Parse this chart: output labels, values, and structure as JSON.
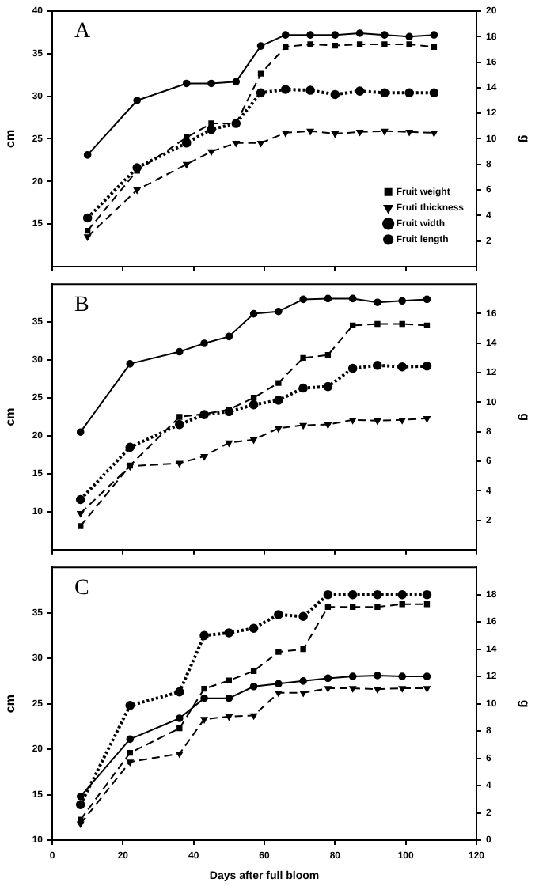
{
  "chart_data": [
    {
      "type": "line",
      "title": "A",
      "ylabel": "cm",
      "y2label": "g",
      "x": [
        10,
        24,
        38,
        45,
        52,
        59,
        66,
        73,
        80,
        87,
        94,
        101,
        108
      ],
      "xlim": [
        0,
        120
      ],
      "xticks": [
        0,
        20,
        40,
        60,
        80,
        100,
        120
      ],
      "ylim": [
        10,
        40
      ],
      "yticks": [
        15,
        20,
        25,
        30,
        35,
        40
      ],
      "y2lim": [
        0,
        20
      ],
      "y2ticks": [
        2,
        4,
        6,
        8,
        10,
        12,
        14,
        16,
        18,
        20
      ],
      "tick_labels": "y",
      "grid": false,
      "legend": "bottom right",
      "series": [
        {
          "name": "Fruit length",
          "color": "#000000",
          "marker": "circle",
          "line_style": "solid",
          "values": [
            23.1,
            29.5,
            31.5,
            31.5,
            31.7,
            35.9,
            37.2,
            37.2,
            37.2,
            37.4,
            37.2,
            37.0,
            37.2
          ]
        },
        {
          "name": "Fruit width",
          "color": "#000000",
          "marker": "circle",
          "line_style": "dotted",
          "values": [
            15.7,
            21.6,
            24.5,
            26.1,
            26.8,
            30.4,
            30.8,
            30.7,
            30.2,
            30.6,
            30.4,
            30.4,
            30.4
          ]
        },
        {
          "name": "Fruti thickness",
          "color": "#000000",
          "marker": "triangle",
          "line_style": "dashed",
          "values": [
            13.5,
            19.0,
            22.0,
            23.5,
            24.5,
            24.5,
            25.7,
            25.9,
            25.6,
            25.8,
            25.9,
            25.8,
            25.7
          ]
        },
        {
          "name": "Fruit weight",
          "color": "#000000",
          "marker": "square",
          "line_style": "dashed",
          "axis": "y2",
          "values": [
            2.8,
            7.5,
            10.1,
            11.2,
            11.2,
            15.1,
            17.2,
            17.4,
            17.3,
            17.4,
            17.4,
            17.4,
            17.2
          ]
        }
      ]
    },
    {
      "type": "line",
      "title": "B",
      "ylabel": "cm",
      "y2label": "g",
      "x": [
        8,
        22,
        36,
        43,
        50,
        57,
        64,
        71,
        78,
        85,
        92,
        99,
        106
      ],
      "xlim": [
        0,
        120
      ],
      "xticks": [
        0,
        20,
        40,
        60,
        80,
        100,
        120
      ],
      "ylim": [
        5,
        40
      ],
      "yticks": [
        10,
        15,
        20,
        25,
        30,
        35
      ],
      "y2lim": [
        0,
        18
      ],
      "y2ticks": [
        2,
        4,
        6,
        8,
        10,
        12,
        14,
        16
      ],
      "tick_labels": "y",
      "grid": false,
      "series": [
        {
          "color": "#000000",
          "marker": "circle",
          "line_style": "solid",
          "values": [
            20.5,
            29.5,
            31.1,
            32.2,
            33.1,
            36.1,
            36.4,
            38.0,
            38.1,
            38.1,
            37.6,
            37.8,
            38.0
          ]
        },
        {
          "color": "#000000",
          "marker": "circle",
          "line_style": "dotted",
          "values": [
            11.6,
            18.5,
            21.5,
            22.8,
            23.2,
            24.1,
            24.7,
            26.3,
            26.5,
            28.9,
            29.3,
            29.1,
            29.2
          ]
        },
        {
          "color": "#000000",
          "marker": "triangle",
          "line_style": "dashed",
          "values": [
            9.8,
            16.0,
            16.4,
            17.3,
            19.1,
            19.5,
            21.0,
            21.4,
            21.5,
            22.1,
            22.0,
            22.1,
            22.3
          ]
        },
        {
          "color": "#000000",
          "marker": "square",
          "line_style": "dashed",
          "axis": "y2",
          "values": [
            1.6,
            5.7,
            9.0,
            9.2,
            9.5,
            10.3,
            11.3,
            13.0,
            13.2,
            15.2,
            15.3,
            15.3,
            15.2
          ]
        }
      ]
    },
    {
      "type": "line",
      "title": "C",
      "xlabel": "Days after full bloom",
      "ylabel": "cm",
      "y2label": "g",
      "x": [
        8,
        22,
        36,
        43,
        50,
        57,
        64,
        71,
        78,
        85,
        92,
        99,
        106
      ],
      "xlim": [
        0,
        120
      ],
      "xticks": [
        0,
        20,
        40,
        60,
        80,
        100,
        120
      ],
      "ylim": [
        10,
        40
      ],
      "yticks": [
        10,
        15,
        20,
        25,
        30,
        35
      ],
      "y2lim": [
        0,
        20
      ],
      "y2ticks": [
        0,
        2,
        4,
        6,
        8,
        10,
        12,
        14,
        16,
        18
      ],
      "grid": false,
      "series": [
        {
          "color": "#000000",
          "marker": "circle",
          "line_style": "solid",
          "values": [
            14.8,
            21.1,
            23.4,
            25.6,
            25.6,
            26.9,
            27.2,
            27.5,
            27.8,
            28.0,
            28.1,
            28.0,
            28.0
          ]
        },
        {
          "color": "#000000",
          "marker": "circle",
          "line_style": "dotted",
          "values": [
            13.9,
            24.8,
            26.3,
            32.5,
            32.8,
            33.3,
            34.8,
            34.6,
            37.0,
            37.0,
            37.0,
            37.0,
            37.0
          ]
        },
        {
          "color": "#000000",
          "marker": "triangle",
          "line_style": "dashed",
          "values": [
            11.8,
            18.6,
            19.5,
            23.3,
            23.6,
            23.7,
            26.2,
            26.2,
            26.7,
            26.7,
            26.6,
            26.7,
            26.7
          ]
        },
        {
          "color": "#000000",
          "marker": "square",
          "line_style": "dashed",
          "axis": "y2",
          "values": [
            1.5,
            6.4,
            8.2,
            11.1,
            11.7,
            12.4,
            13.8,
            14.0,
            17.1,
            17.1,
            17.1,
            17.3,
            17.3
          ]
        }
      ]
    }
  ]
}
